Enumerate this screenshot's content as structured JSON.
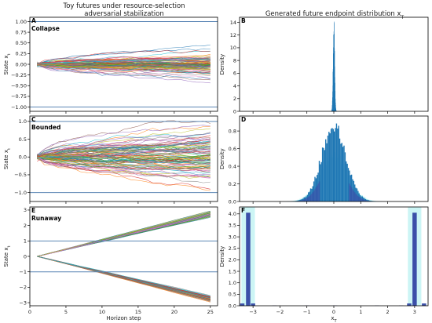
{
  "figure": {
    "left_title_line1": "Toy futures under resource-selection",
    "left_title_line2": "adversarial stabilization",
    "right_title": "Generated future endpoint distribution x",
    "right_title_sub": "T"
  },
  "colors": {
    "boundary": "#5b86b5",
    "hist": "#1f77b4",
    "hist_dark": "#3b4fa8",
    "hist_band": "#bff3f3",
    "traj_palette": [
      "#1f77b4",
      "#ff7f0e",
      "#2ca02c",
      "#d62728",
      "#9467bd",
      "#8c564b",
      "#e377c2",
      "#7f7f7f",
      "#bcbd22",
      "#17becf"
    ]
  },
  "chart_data": [
    {
      "id": "A",
      "type": "line",
      "panel_label": "A",
      "regime": "Collapse",
      "ylabel": "State x",
      "ylabel_sub": "t",
      "xlim": [
        0,
        26
      ],
      "ylim": [
        -1.1,
        1.1
      ],
      "yticks": [
        -1.0,
        -0.75,
        -0.5,
        -0.25,
        0.0,
        0.25,
        0.5,
        0.75,
        1.0
      ],
      "ytick_labels": [
        "−1.00",
        "−0.75",
        "−0.50",
        "−0.25",
        "0.00",
        "0.25",
        "0.50",
        "0.75",
        "1.00"
      ],
      "xticks": [
        0,
        5,
        10,
        15,
        20,
        25
      ],
      "boundaries": [
        -1.0,
        1.0
      ],
      "trajectories": {
        "count": 100,
        "steps": 25,
        "start": 0.0,
        "mean_end": 0.0,
        "spread_end": 0.15
      }
    },
    {
      "id": "B",
      "type": "bar",
      "panel_label": "B",
      "ylabel": "Density",
      "xlim": [
        -3.5,
        3.5
      ],
      "ylim": [
        0,
        14.8
      ],
      "yticks": [
        0,
        2,
        4,
        6,
        8,
        10,
        12,
        14
      ],
      "xticks": [
        -3,
        -2,
        -1,
        0,
        1,
        2,
        3
      ],
      "distribution": {
        "shape": "gaussian",
        "center": 0.0,
        "sigma": 0.028,
        "peak": 13.5
      }
    },
    {
      "id": "C",
      "type": "line",
      "panel_label": "C",
      "regime": "Bounded",
      "ylabel": "State x",
      "ylabel_sub": "t",
      "xlim": [
        0,
        26
      ],
      "ylim": [
        -1.25,
        1.15
      ],
      "yticks": [
        -1.0,
        -0.5,
        0.0,
        0.5,
        1.0
      ],
      "ytick_labels": [
        "−1.0",
        "−0.5",
        "0.0",
        "0.5",
        "1.0"
      ],
      "xticks": [
        0,
        5,
        10,
        15,
        20,
        25
      ],
      "boundaries": [
        -1.0,
        1.0
      ],
      "trajectories": {
        "count": 100,
        "steps": 25,
        "start": 0.0,
        "mean_end": 0.0,
        "spread_end": 0.42
      }
    },
    {
      "id": "D",
      "type": "bar",
      "panel_label": "D",
      "ylabel": "Density",
      "xlim": [
        -3.5,
        3.5
      ],
      "ylim": [
        0,
        0.97
      ],
      "yticks": [
        0.0,
        0.2,
        0.4,
        0.6,
        0.8
      ],
      "ytick_labels": [
        "0.0",
        "0.2",
        "0.4",
        "0.6",
        "0.8"
      ],
      "xticks": [
        -3,
        -2,
        -1,
        0,
        1,
        2,
        3
      ],
      "distribution": {
        "shape": "gaussian",
        "center": 0.0,
        "sigma": 0.45,
        "peak": 0.85
      }
    },
    {
      "id": "E",
      "type": "line",
      "panel_label": "E",
      "regime": "Runaway",
      "ylabel": "State x",
      "ylabel_sub": "t",
      "xlabel": "Horizon step",
      "xlim": [
        0,
        26
      ],
      "ylim": [
        -3.2,
        3.2
      ],
      "yticks": [
        -3,
        -2,
        -1,
        0,
        1,
        2,
        3
      ],
      "ytick_labels": [
        "−3",
        "−2",
        "−1",
        "0",
        "1",
        "2",
        "3"
      ],
      "xticks": [
        0,
        5,
        10,
        15,
        20,
        25
      ],
      "xtick_labels": [
        "0",
        "5",
        "10",
        "15",
        "20",
        "25"
      ],
      "boundaries": [
        -1.0,
        1.0
      ],
      "trajectories": {
        "count": 100,
        "steps": 25,
        "start": 0.0,
        "branches": [
          2.75,
          -2.75
        ],
        "spread_end": 0.12
      }
    },
    {
      "id": "F",
      "type": "bar",
      "panel_label": "F",
      "ylabel": "Density",
      "xlabel": "x",
      "xlabel_sub": "T",
      "xlim": [
        -3.5,
        3.5
      ],
      "ylim": [
        0,
        4.3
      ],
      "yticks": [
        0.0,
        0.5,
        1.0,
        1.5,
        2.0,
        2.5,
        3.0,
        3.5,
        4.0
      ],
      "ytick_labels": [
        "0.0",
        "0.5",
        "1.0",
        "1.5",
        "2.0",
        "2.5",
        "3.0",
        "3.5",
        "4.0"
      ],
      "xticks": [
        -3,
        -2,
        -1,
        0,
        1,
        2,
        3
      ],
      "xtick_labels": [
        "−3",
        "−2",
        "−1",
        "0",
        "1",
        "2",
        "3"
      ],
      "bars": [
        {
          "x": -3.4,
          "value": 0.1
        },
        {
          "x": -3.18,
          "value": 4.05
        },
        {
          "x": -3.0,
          "value": 0.1
        },
        {
          "x": -2.2,
          "value": 0.01
        },
        {
          "x": -1.0,
          "value": 0.01
        },
        {
          "x": 0.05,
          "value": 0.01
        },
        {
          "x": 1.6,
          "value": 0.01
        },
        {
          "x": 2.5,
          "value": 0.01
        },
        {
          "x": 2.8,
          "value": 0.1
        },
        {
          "x": 3.0,
          "value": 4.05
        },
        {
          "x": 3.35,
          "value": 0.1
        }
      ]
    }
  ]
}
